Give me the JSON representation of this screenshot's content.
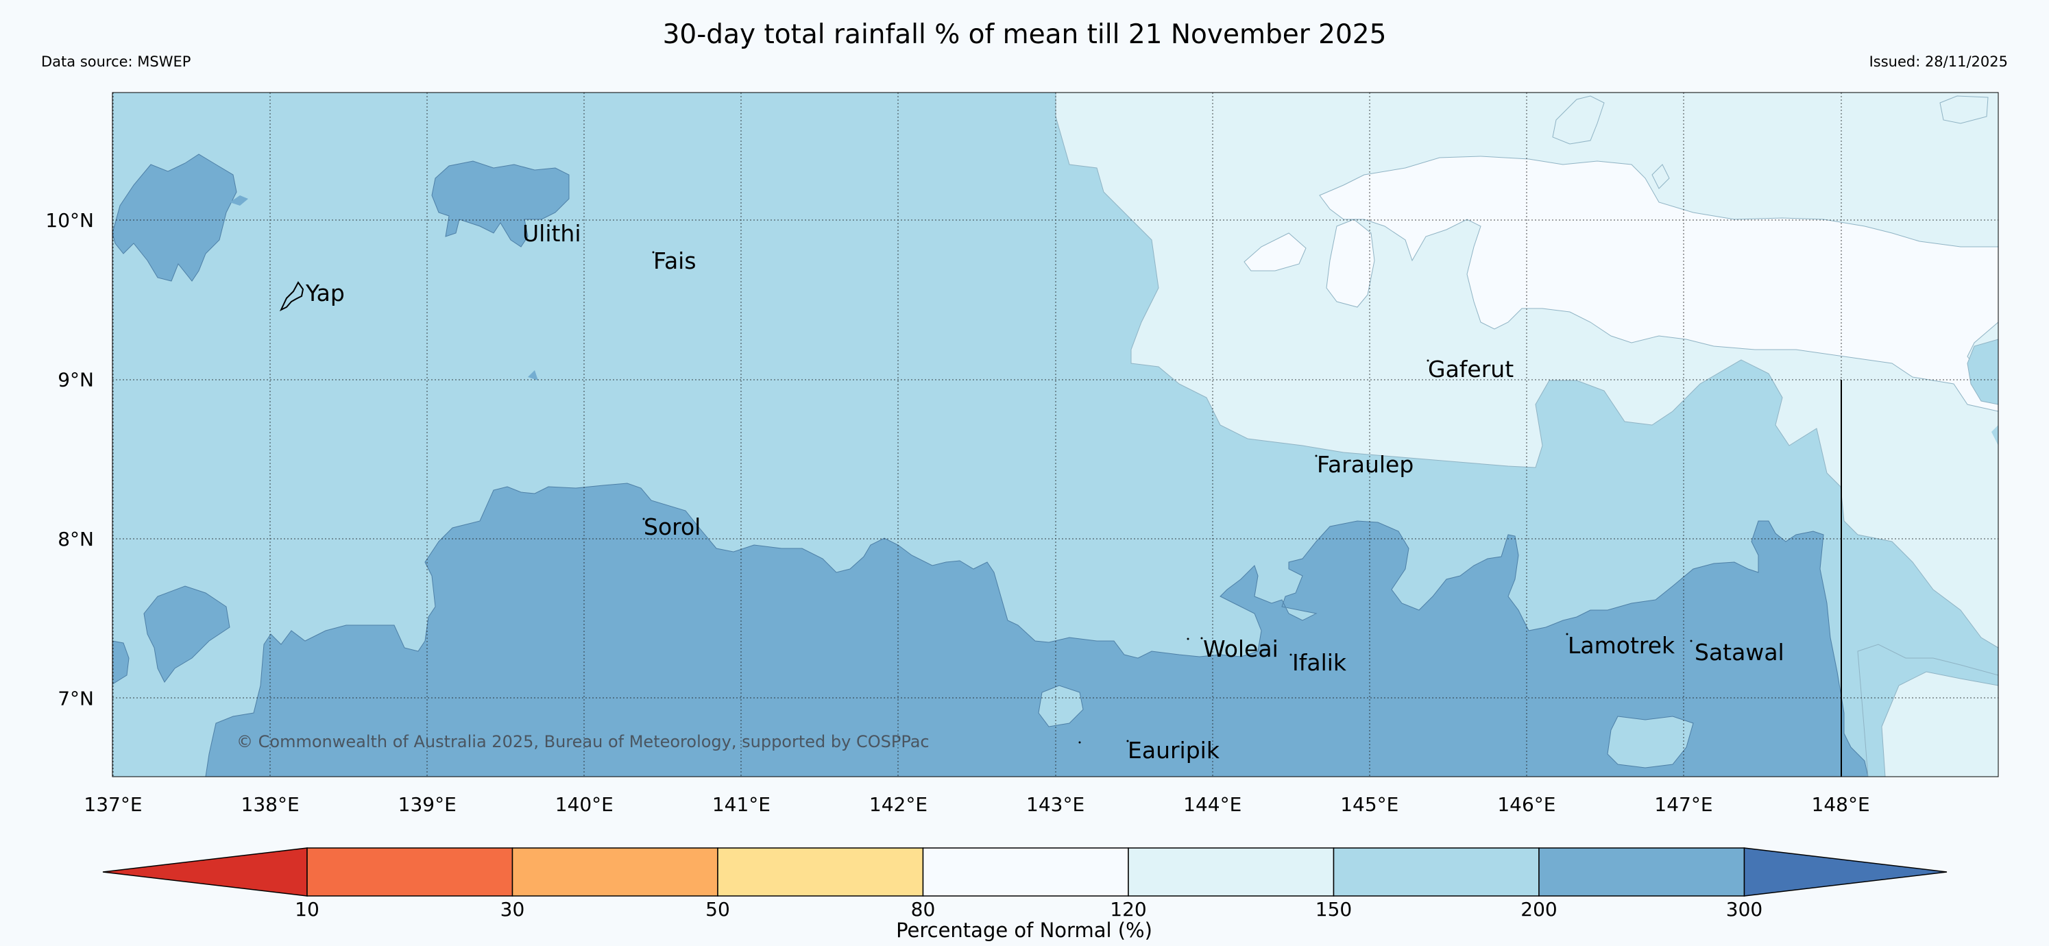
{
  "header": {
    "title": "30-day total rainfall % of mean till 21 November 2025",
    "data_source": "Data source: MSWEP",
    "issued": "Issued: 28/11/2025"
  },
  "map": {
    "lon_range": [
      137,
      149
    ],
    "lat_range": [
      6.5,
      10.8
    ],
    "lon_ticks": [
      {
        "value": 137,
        "label": "137°E"
      },
      {
        "value": 138,
        "label": "138°E"
      },
      {
        "value": 139,
        "label": "139°E"
      },
      {
        "value": 140,
        "label": "140°E"
      },
      {
        "value": 141,
        "label": "141°E"
      },
      {
        "value": 142,
        "label": "142°E"
      },
      {
        "value": 143,
        "label": "143°E"
      },
      {
        "value": 144,
        "label": "144°E"
      },
      {
        "value": 145,
        "label": "145°E"
      },
      {
        "value": 146,
        "label": "146°E"
      },
      {
        "value": 147,
        "label": "147°E"
      },
      {
        "value": 148,
        "label": "148°E"
      }
    ],
    "lat_ticks": [
      {
        "value": 10,
        "label": "10°N"
      },
      {
        "value": 9,
        "label": "9°N"
      },
      {
        "value": 8,
        "label": "8°N"
      },
      {
        "value": 7,
        "label": "7°N"
      }
    ],
    "places": [
      {
        "name": "Yap"
      },
      {
        "name": "Ulithi"
      },
      {
        "name": "Fais"
      },
      {
        "name": "Sorol"
      },
      {
        "name": "Gaferut"
      },
      {
        "name": "Faraulep"
      },
      {
        "name": "Woleai"
      },
      {
        "name": "Ifalik"
      },
      {
        "name": "Lamotrek"
      },
      {
        "name": "Satawal"
      },
      {
        "name": "Eauripik"
      }
    ],
    "copyright": "© Commonwealth of Australia 2025, Bureau of Meteorology, supported by COSPPac"
  },
  "legend": {
    "title": "Percentage of Normal (%)",
    "boundaries": [
      "10",
      "30",
      "50",
      "80",
      "120",
      "150",
      "200",
      "300"
    ],
    "colors": [
      "#d73027",
      "#f46d43",
      "#fdae61",
      "#fee090",
      "#f7fbff",
      "#e0f3f8",
      "#abd9e9",
      "#74add1",
      "#4575b4"
    ]
  }
}
